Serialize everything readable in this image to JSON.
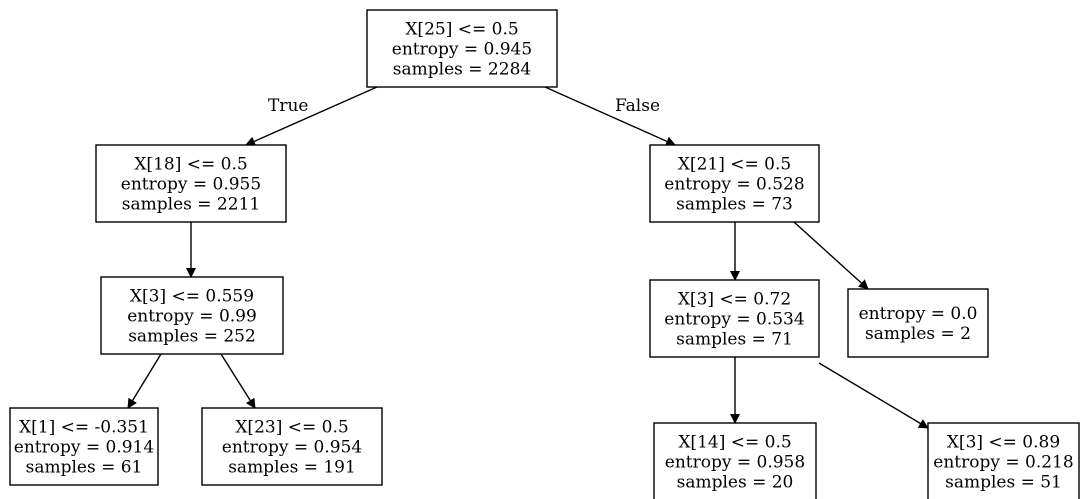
{
  "tree": {
    "nodes": [
      {
        "id": "n0",
        "lines": [
          "X[25] <= 0.5",
          "entropy = 0.945",
          "samples = 2284"
        ]
      },
      {
        "id": "n1",
        "lines": [
          "X[18] <= 0.5",
          "entropy = 0.955",
          "samples = 2211"
        ]
      },
      {
        "id": "n2",
        "lines": [
          "X[3] <= 0.559",
          "entropy = 0.99",
          "samples = 252"
        ]
      },
      {
        "id": "n3",
        "lines": [
          "X[1] <= -0.351",
          "entropy = 0.914",
          "samples = 61"
        ]
      },
      {
        "id": "n4",
        "lines": [
          "X[23] <= 0.5",
          "entropy = 0.954",
          "samples = 191"
        ]
      },
      {
        "id": "n5",
        "lines": [
          "X[21] <= 0.5",
          "entropy = 0.528",
          "samples = 73"
        ]
      },
      {
        "id": "n6",
        "lines": [
          "X[3] <= 0.72",
          "entropy = 0.534",
          "samples = 71"
        ]
      },
      {
        "id": "n7",
        "lines": [
          "X[14] <= 0.5",
          "entropy = 0.958",
          "samples = 20"
        ]
      },
      {
        "id": "n8",
        "lines": [
          "X[3] <= 0.89",
          "entropy = 0.218",
          "samples = 51"
        ]
      },
      {
        "id": "n9",
        "lines": [
          "entropy = 0.0",
          "samples = 2"
        ]
      }
    ],
    "edges": [
      {
        "from": "n0",
        "to": "n1",
        "label": "True"
      },
      {
        "from": "n0",
        "to": "n5",
        "label": "False"
      },
      {
        "from": "n1",
        "to": "n2",
        "label": ""
      },
      {
        "from": "n2",
        "to": "n3",
        "label": ""
      },
      {
        "from": "n2",
        "to": "n4",
        "label": ""
      },
      {
        "from": "n5",
        "to": "n6",
        "label": ""
      },
      {
        "from": "n5",
        "to": "n9",
        "label": ""
      },
      {
        "from": "n6",
        "to": "n7",
        "label": ""
      },
      {
        "from": "n6",
        "to": "n8",
        "label": ""
      }
    ]
  }
}
